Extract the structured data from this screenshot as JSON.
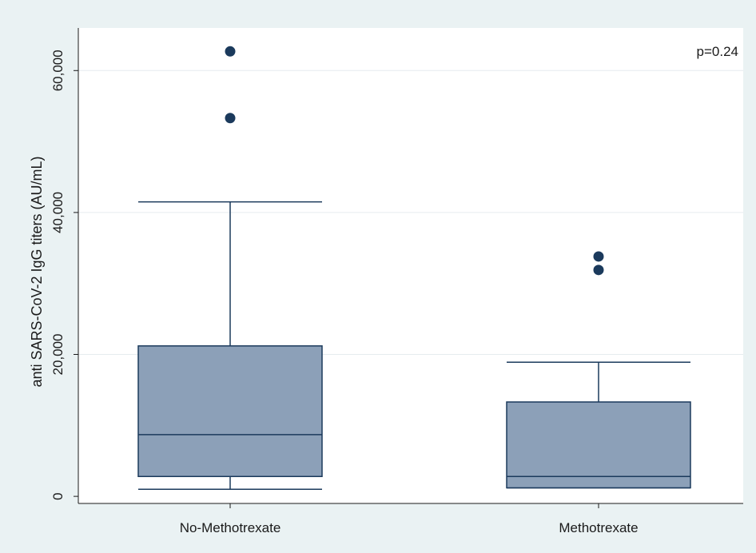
{
  "chart_data": {
    "type": "boxplot",
    "ylabel": "anti SARS-CoV-2 IgG titers (AU/mL)",
    "xlabel": "",
    "ylim": [
      -1000,
      66000
    ],
    "yticks": [
      0,
      20000,
      40000,
      60000
    ],
    "ytick_labels": [
      "0",
      "20,000",
      "40,000",
      "60,000"
    ],
    "grid": true,
    "annotation": "p=0.24",
    "box_color": "#8ca0b8",
    "line_color": "#1b3a5c",
    "outlier_color": "#1b3a5c",
    "groups": [
      {
        "label": "No-Methotrexate",
        "whisker_low": 1000,
        "q1": 2800,
        "median": 8700,
        "q3": 21200,
        "whisker_high": 41500,
        "outliers": [
          53300,
          62700
        ]
      },
      {
        "label": "Methotrexate",
        "whisker_low": 1200,
        "q1": 1200,
        "median": 2800,
        "q3": 13300,
        "whisker_high": 18900,
        "outliers": [
          31900,
          33800
        ]
      }
    ]
  }
}
